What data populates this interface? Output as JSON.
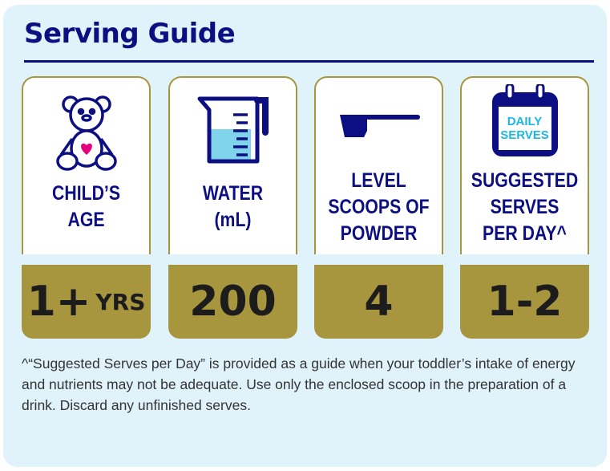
{
  "title": "Serving Guide",
  "colors": {
    "navy": "#0c0f82",
    "gold": "#a8963f",
    "background": "#e0f3fb",
    "heart": "#e6007e",
    "water": "#7fd3ea"
  },
  "cards": [
    {
      "icon": "teddy-bear-icon",
      "label": "CHILD’S AGE",
      "value": "1+",
      "unit": "YRS"
    },
    {
      "icon": "measuring-jug-icon",
      "label": "WATER (mL)",
      "value": "200"
    },
    {
      "icon": "scoop-icon",
      "label": "LEVEL SCOOPS OF POWDER",
      "value": "4"
    },
    {
      "icon": "calendar-icon",
      "icon_text": "DAILY SERVES",
      "label": "SUGGESTED SERVES PER DAY^",
      "value": "1-2"
    }
  ],
  "footnote": "^“Suggested Serves per Day” is provided as a guide when your toddler’s intake of energy and nutrients may not be adequate. Use only the enclosed scoop in the preparation of a drink. Discard any unfinished serves."
}
